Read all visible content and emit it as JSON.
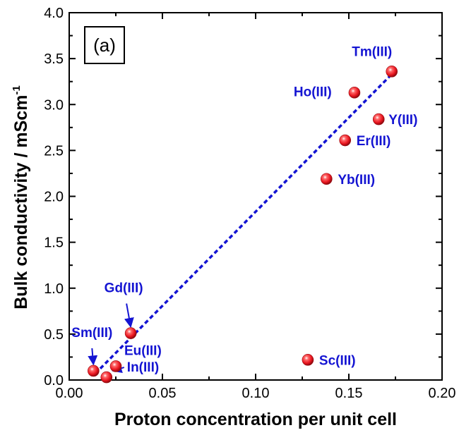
{
  "chart_data": {
    "type": "scatter",
    "panel_label": "(a)",
    "xlabel": "Proton concentration per unit cell",
    "ylabel_main": "Bulk conductivity / mScm",
    "ylabel_sup": "-1",
    "xlim": [
      0.0,
      0.2
    ],
    "ylim": [
      0.0,
      4.0
    ],
    "x_ticks": [
      "0.00",
      "0.05",
      "0.10",
      "0.15",
      "0.20"
    ],
    "y_ticks": [
      "0.0",
      "0.5",
      "1.0",
      "1.5",
      "2.0",
      "2.5",
      "3.0",
      "3.5",
      "4.0"
    ],
    "points": [
      {
        "label": "Tm(III)",
        "x": 0.173,
        "y": 3.36
      },
      {
        "label": "Ho(III)",
        "x": 0.153,
        "y": 3.13
      },
      {
        "label": "Y(III)",
        "x": 0.166,
        "y": 2.84
      },
      {
        "label": "Er(III)",
        "x": 0.148,
        "y": 2.61
      },
      {
        "label": "Yb(III)",
        "x": 0.138,
        "y": 2.19
      },
      {
        "label": "Sc(III)",
        "x": 0.128,
        "y": 0.22
      },
      {
        "label": "Gd(III)",
        "x": 0.033,
        "y": 0.51
      },
      {
        "label": "Eu(III)",
        "x": 0.025,
        "y": 0.15
      },
      {
        "label": "Sm(III)",
        "x": 0.013,
        "y": 0.1
      },
      {
        "label": "In(III)",
        "x": 0.02,
        "y": 0.03
      }
    ],
    "fit_line": {
      "x": [
        0.014,
        0.174
      ],
      "y": [
        0.07,
        3.35
      ],
      "style": "dashed"
    },
    "colors": {
      "marker": "#e8141e",
      "label": "#1414d2",
      "fit": "#1414d2"
    },
    "grid": false,
    "legend": "none"
  }
}
